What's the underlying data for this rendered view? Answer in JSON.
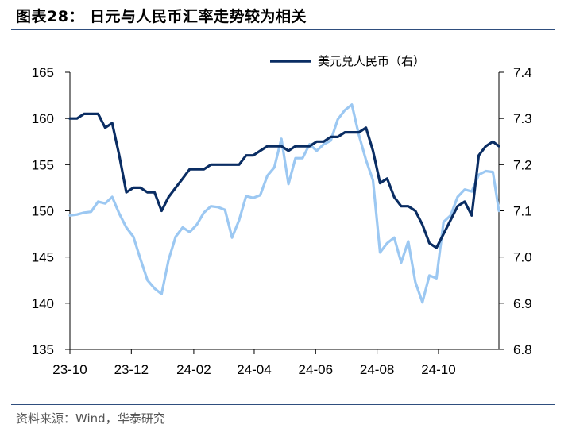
{
  "header": {
    "title": "图表28：  日元与人民币汇率走势较为相关"
  },
  "footer": {
    "source": "资料来源：Wind，华泰研究"
  },
  "colors": {
    "rmb_line": "#0a2d63",
    "jpy_line": "#9cc8f2",
    "rule": "#2f4e7e"
  },
  "chart_data": {
    "type": "line",
    "title": "",
    "x_ticks": [
      "23-10",
      "23-12",
      "24-02",
      "24-04",
      "24-06",
      "24-08",
      "24-10"
    ],
    "x_range": [
      "2023-10-01",
      "2024-11-30"
    ],
    "y_left": {
      "min": 135,
      "max": 165,
      "ticks": [
        "135",
        "140",
        "145",
        "150",
        "155",
        "160",
        "165"
      ]
    },
    "y_right": {
      "min": 6.8,
      "max": 7.4,
      "ticks": [
        "6.8",
        "6.9",
        "7.0",
        "7.1",
        "7.2",
        "7.3",
        "7.4"
      ]
    },
    "legend": {
      "position": "top-right",
      "entries": [
        "美元兑人民币（右）"
      ]
    },
    "series": [
      {
        "name": "美元兑人民币（右）",
        "axis": "right",
        "color": "#0a2d63",
        "points": [
          [
            "2023-10-01",
            7.3
          ],
          [
            "2023-10-08",
            7.3
          ],
          [
            "2023-10-15",
            7.31
          ],
          [
            "2023-10-22",
            7.31
          ],
          [
            "2023-10-29",
            7.31
          ],
          [
            "2023-11-05",
            7.28
          ],
          [
            "2023-11-12",
            7.29
          ],
          [
            "2023-11-19",
            7.22
          ],
          [
            "2023-11-26",
            7.14
          ],
          [
            "2023-12-03",
            7.15
          ],
          [
            "2023-12-10",
            7.15
          ],
          [
            "2023-12-17",
            7.14
          ],
          [
            "2023-12-24",
            7.14
          ],
          [
            "2023-12-31",
            7.1
          ],
          [
            "2024-01-07",
            7.13
          ],
          [
            "2024-01-14",
            7.15
          ],
          [
            "2024-01-21",
            7.17
          ],
          [
            "2024-01-28",
            7.19
          ],
          [
            "2024-02-04",
            7.19
          ],
          [
            "2024-02-11",
            7.19
          ],
          [
            "2024-02-18",
            7.2
          ],
          [
            "2024-02-25",
            7.2
          ],
          [
            "2024-03-03",
            7.2
          ],
          [
            "2024-03-10",
            7.2
          ],
          [
            "2024-03-17",
            7.2
          ],
          [
            "2024-03-24",
            7.22
          ],
          [
            "2024-03-31",
            7.22
          ],
          [
            "2024-04-07",
            7.23
          ],
          [
            "2024-04-14",
            7.24
          ],
          [
            "2024-04-21",
            7.24
          ],
          [
            "2024-04-28",
            7.24
          ],
          [
            "2024-05-05",
            7.23
          ],
          [
            "2024-05-12",
            7.24
          ],
          [
            "2024-05-19",
            7.24
          ],
          [
            "2024-05-26",
            7.24
          ],
          [
            "2024-06-02",
            7.25
          ],
          [
            "2024-06-09",
            7.25
          ],
          [
            "2024-06-16",
            7.26
          ],
          [
            "2024-06-23",
            7.26
          ],
          [
            "2024-06-30",
            7.27
          ],
          [
            "2024-07-07",
            7.27
          ],
          [
            "2024-07-14",
            7.27
          ],
          [
            "2024-07-21",
            7.28
          ],
          [
            "2024-07-28",
            7.23
          ],
          [
            "2024-08-04",
            7.16
          ],
          [
            "2024-08-11",
            7.17
          ],
          [
            "2024-08-18",
            7.13
          ],
          [
            "2024-08-25",
            7.11
          ],
          [
            "2024-09-01",
            7.11
          ],
          [
            "2024-09-08",
            7.1
          ],
          [
            "2024-09-15",
            7.07
          ],
          [
            "2024-09-22",
            7.03
          ],
          [
            "2024-09-29",
            7.02
          ],
          [
            "2024-10-06",
            7.05
          ],
          [
            "2024-10-13",
            7.08
          ],
          [
            "2024-10-20",
            7.11
          ],
          [
            "2024-10-27",
            7.12
          ],
          [
            "2024-11-03",
            7.09
          ],
          [
            "2024-11-10",
            7.22
          ],
          [
            "2024-11-17",
            7.24
          ],
          [
            "2024-11-24",
            7.25
          ],
          [
            "2024-11-30",
            7.24
          ]
        ]
      },
      {
        "name": "",
        "axis": "left",
        "color": "#9cc8f2",
        "points": [
          [
            "2023-10-01",
            149.5
          ],
          [
            "2023-10-08",
            149.6
          ],
          [
            "2023-10-15",
            149.8
          ],
          [
            "2023-10-22",
            149.9
          ],
          [
            "2023-10-29",
            151.0
          ],
          [
            "2023-11-05",
            150.8
          ],
          [
            "2023-11-12",
            151.5
          ],
          [
            "2023-11-19",
            149.7
          ],
          [
            "2023-11-26",
            148.2
          ],
          [
            "2023-12-03",
            147.2
          ],
          [
            "2023-12-10",
            144.8
          ],
          [
            "2023-12-17",
            142.5
          ],
          [
            "2023-12-24",
            141.6
          ],
          [
            "2023-12-31",
            141.0
          ],
          [
            "2024-01-07",
            144.7
          ],
          [
            "2024-01-14",
            147.2
          ],
          [
            "2024-01-21",
            148.2
          ],
          [
            "2024-01-28",
            147.7
          ],
          [
            "2024-02-04",
            148.5
          ],
          [
            "2024-02-11",
            149.8
          ],
          [
            "2024-02-18",
            150.5
          ],
          [
            "2024-02-25",
            150.4
          ],
          [
            "2024-03-03",
            150.1
          ],
          [
            "2024-03-10",
            147.1
          ],
          [
            "2024-03-17",
            149.0
          ],
          [
            "2024-03-24",
            151.6
          ],
          [
            "2024-03-31",
            151.4
          ],
          [
            "2024-04-07",
            151.7
          ],
          [
            "2024-04-14",
            153.8
          ],
          [
            "2024-04-21",
            154.7
          ],
          [
            "2024-04-28",
            157.8
          ],
          [
            "2024-05-05",
            152.9
          ],
          [
            "2024-05-12",
            155.7
          ],
          [
            "2024-05-19",
            155.7
          ],
          [
            "2024-05-26",
            157.2
          ],
          [
            "2024-06-02",
            156.5
          ],
          [
            "2024-06-09",
            157.2
          ],
          [
            "2024-06-16",
            157.6
          ],
          [
            "2024-06-23",
            159.9
          ],
          [
            "2024-06-30",
            160.9
          ],
          [
            "2024-07-07",
            161.5
          ],
          [
            "2024-07-14",
            158.2
          ],
          [
            "2024-07-21",
            155.5
          ],
          [
            "2024-07-28",
            153.3
          ],
          [
            "2024-08-04",
            145.5
          ],
          [
            "2024-08-11",
            146.5
          ],
          [
            "2024-08-18",
            147.1
          ],
          [
            "2024-08-25",
            144.4
          ],
          [
            "2024-09-01",
            146.7
          ],
          [
            "2024-09-08",
            142.3
          ],
          [
            "2024-09-15",
            140.1
          ],
          [
            "2024-09-22",
            143.0
          ],
          [
            "2024-09-29",
            142.7
          ],
          [
            "2024-10-06",
            148.8
          ],
          [
            "2024-10-13",
            149.5
          ],
          [
            "2024-10-20",
            151.5
          ],
          [
            "2024-10-27",
            152.3
          ],
          [
            "2024-11-03",
            152.1
          ],
          [
            "2024-11-10",
            153.9
          ],
          [
            "2024-11-17",
            154.3
          ],
          [
            "2024-11-24",
            154.2
          ],
          [
            "2024-11-30",
            150.0
          ]
        ]
      }
    ]
  }
}
